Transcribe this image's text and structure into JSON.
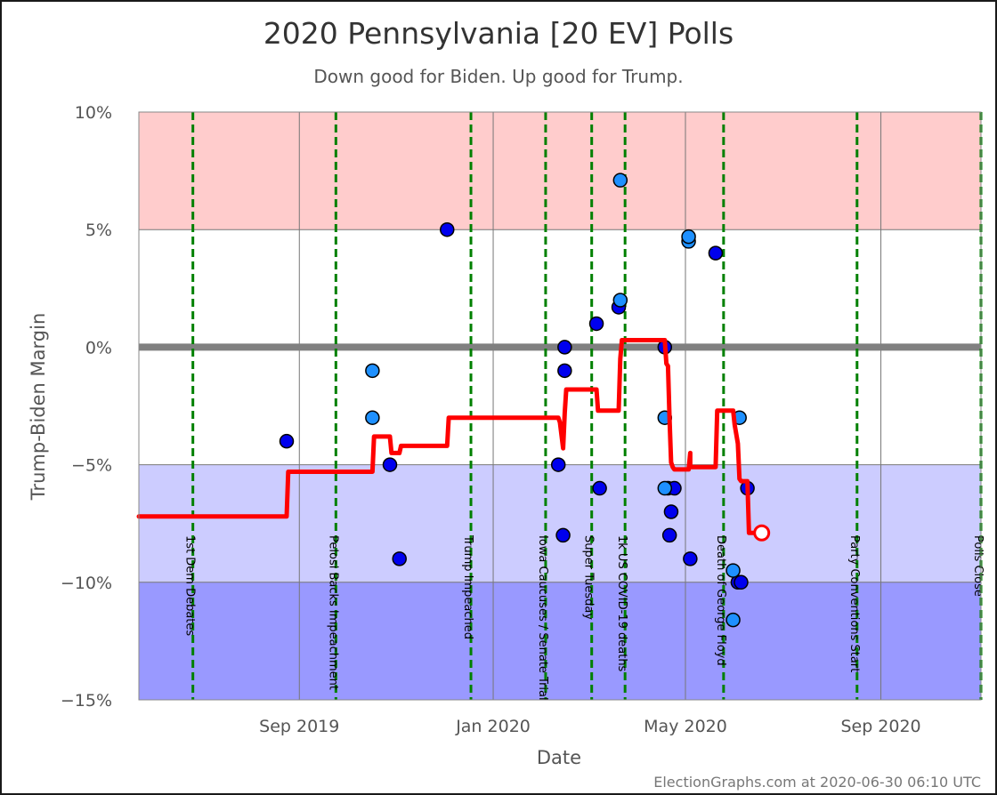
{
  "chart_data": {
    "type": "scatter",
    "title": "2020 Pennsylvania [20 EV] Polls",
    "subtitle": "Down good for Biden. Up good for Trump.",
    "xlabel": "Date",
    "ylabel": "Trump-Biden Margin",
    "footer": "ElectionGraphs.com at 2020-06-30 06:10 UTC",
    "x_range": [
      "2019-05-23",
      "2020-11-03"
    ],
    "ylim": [
      -15,
      10
    ],
    "yticks": [
      10,
      5,
      0,
      -5,
      -10,
      -15
    ],
    "ytick_labels": [
      "10%",
      "5%",
      "0%",
      "−5%",
      "−10%",
      "−15%"
    ],
    "xticks": [
      {
        "label": "Sep 2019",
        "date": "2019-09-01"
      },
      {
        "label": "Jan 2020",
        "date": "2020-01-01"
      },
      {
        "label": "May 2020",
        "date": "2020-05-01"
      },
      {
        "label": "Sep 2020",
        "date": "2020-09-01"
      }
    ],
    "bands": [
      {
        "from": 5,
        "to": 10,
        "color": "#ffcccc"
      },
      {
        "from": -10,
        "to": -5,
        "color": "#ccccff"
      },
      {
        "from": -15,
        "to": -10,
        "color": "#9999ff"
      }
    ],
    "zero_line_color": "#808080",
    "grid": true,
    "events": [
      {
        "label": "1st Dem Debates",
        "date": "2019-06-26"
      },
      {
        "label": "Pelosi Backs Impeachment",
        "date": "2019-09-24"
      },
      {
        "label": "Trump Impeached",
        "date": "2019-12-18"
      },
      {
        "label": "Iowa Caucuses / Senate Trial",
        "date": "2020-02-03"
      },
      {
        "label": "Super Tuesday",
        "date": "2020-03-03"
      },
      {
        "label": "1k US COVID-19 deaths",
        "date": "2020-03-24"
      },
      {
        "label": "Death of George Floyd",
        "date": "2020-05-25"
      },
      {
        "label": "Party Conventions Start",
        "date": "2020-08-17"
      },
      {
        "label": "Polls Close",
        "date": "2020-11-03"
      }
    ],
    "event_line_color": "#008000",
    "series": [
      {
        "color": "#0000ee",
        "points": [
          {
            "date": "2019-08-24",
            "y": -4
          },
          {
            "date": "2019-10-28",
            "y": -5
          },
          {
            "date": "2019-11-03",
            "y": -9
          },
          {
            "date": "2019-12-03",
            "y": 5
          },
          {
            "date": "2020-02-11",
            "y": -5
          },
          {
            "date": "2020-02-14",
            "y": -8
          },
          {
            "date": "2020-02-15",
            "y": 0
          },
          {
            "date": "2020-02-15",
            "y": -1
          },
          {
            "date": "2020-03-06",
            "y": 1
          },
          {
            "date": "2020-03-08",
            "y": -6
          },
          {
            "date": "2020-03-20",
            "y": 1.7
          },
          {
            "date": "2020-04-18",
            "y": 0
          },
          {
            "date": "2020-04-20",
            "y": -6
          },
          {
            "date": "2020-04-21",
            "y": -8
          },
          {
            "date": "2020-04-22",
            "y": -7
          },
          {
            "date": "2020-04-24",
            "y": -6
          },
          {
            "date": "2020-05-04",
            "y": -9
          },
          {
            "date": "2020-05-20",
            "y": 4
          },
          {
            "date": "2020-06-03",
            "y": -10
          },
          {
            "date": "2020-06-05",
            "y": -10
          },
          {
            "date": "2020-06-09",
            "y": -6
          }
        ]
      },
      {
        "color": "#1e90ff",
        "points": [
          {
            "date": "2019-10-17",
            "y": -1
          },
          {
            "date": "2019-10-17",
            "y": -3
          },
          {
            "date": "2020-03-21",
            "y": 2
          },
          {
            "date": "2020-03-21",
            "y": 7.1
          },
          {
            "date": "2020-04-18",
            "y": -3
          },
          {
            "date": "2020-04-18",
            "y": -6
          },
          {
            "date": "2020-05-03",
            "y": 4.5
          },
          {
            "date": "2020-05-03",
            "y": 4.7
          },
          {
            "date": "2020-05-31",
            "y": -9.5
          },
          {
            "date": "2020-05-31",
            "y": -11.6
          },
          {
            "date": "2020-06-04",
            "y": -3
          }
        ]
      },
      {
        "name": "average",
        "type": "line",
        "color": "#ff0000",
        "points": [
          {
            "date": "2019-05-23",
            "y": -7.2
          },
          {
            "date": "2019-08-24",
            "y": -7.2
          },
          {
            "date": "2019-08-25",
            "y": -5.3
          },
          {
            "date": "2019-10-17",
            "y": -5.3
          },
          {
            "date": "2019-10-18",
            "y": -3.8
          },
          {
            "date": "2019-10-28",
            "y": -3.8
          },
          {
            "date": "2019-10-29",
            "y": -4.5
          },
          {
            "date": "2019-11-03",
            "y": -4.5
          },
          {
            "date": "2019-11-04",
            "y": -4.2
          },
          {
            "date": "2019-12-03",
            "y": -4.2
          },
          {
            "date": "2019-12-04",
            "y": -3
          },
          {
            "date": "2020-02-11",
            "y": -3
          },
          {
            "date": "2020-02-12",
            "y": -3.2
          },
          {
            "date": "2020-02-14",
            "y": -4.3
          },
          {
            "date": "2020-02-15",
            "y": -2.8
          },
          {
            "date": "2020-02-16",
            "y": -1.8
          },
          {
            "date": "2020-03-06",
            "y": -1.8
          },
          {
            "date": "2020-03-07",
            "y": -2.7
          },
          {
            "date": "2020-03-20",
            "y": -2.7
          },
          {
            "date": "2020-03-21",
            "y": -0.5
          },
          {
            "date": "2020-03-22",
            "y": 0.3
          },
          {
            "date": "2020-04-18",
            "y": 0.3
          },
          {
            "date": "2020-04-19",
            "y": -0.7
          },
          {
            "date": "2020-04-20",
            "y": -0.8
          },
          {
            "date": "2020-04-21",
            "y": -3.1
          },
          {
            "date": "2020-04-22",
            "y": -4.9
          },
          {
            "date": "2020-04-23",
            "y": -5.1
          },
          {
            "date": "2020-04-24",
            "y": -5.2
          },
          {
            "date": "2020-05-03",
            "y": -5.2
          },
          {
            "date": "2020-05-04",
            "y": -4.5
          },
          {
            "date": "2020-05-04",
            "y": -5.1
          },
          {
            "date": "2020-05-20",
            "y": -5.1
          },
          {
            "date": "2020-05-21",
            "y": -2.7
          },
          {
            "date": "2020-05-31",
            "y": -2.7
          },
          {
            "date": "2020-06-01",
            "y": -3.3
          },
          {
            "date": "2020-06-02",
            "y": -3.7
          },
          {
            "date": "2020-06-03",
            "y": -4.1
          },
          {
            "date": "2020-06-04",
            "y": -5.6
          },
          {
            "date": "2020-06-05",
            "y": -5.7
          },
          {
            "date": "2020-06-09",
            "y": -5.7
          },
          {
            "date": "2020-06-10",
            "y": -7.9
          },
          {
            "date": "2020-06-18",
            "y": -7.9
          }
        ]
      }
    ]
  }
}
